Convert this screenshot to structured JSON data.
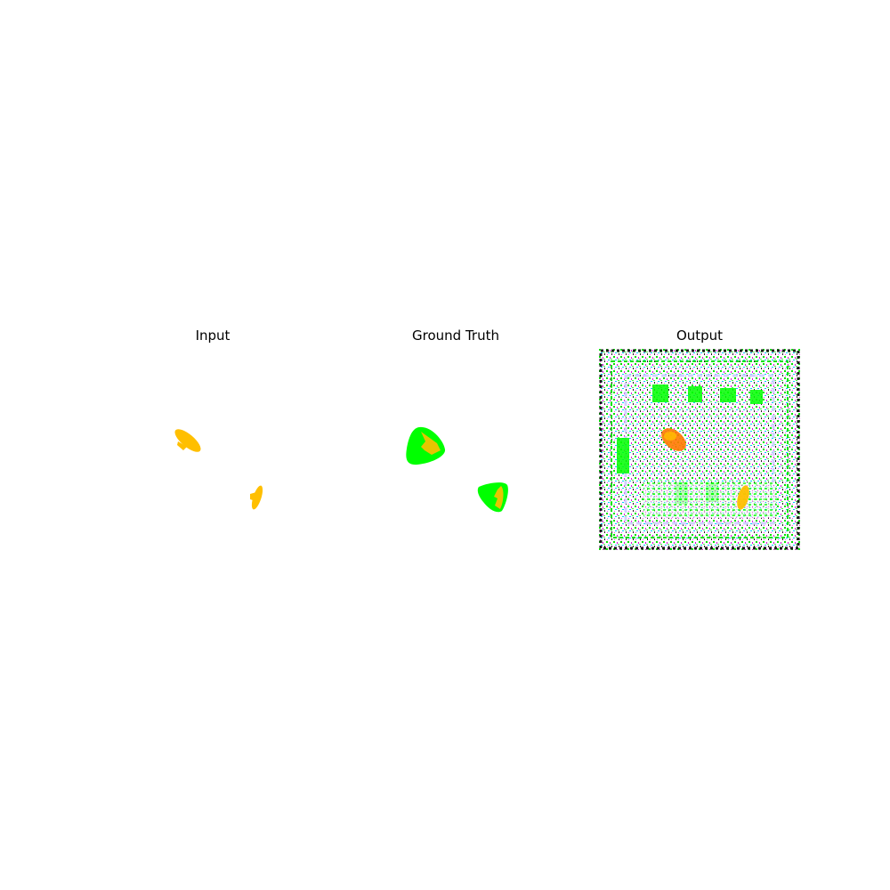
{
  "panels": [
    {
      "title": "Input"
    },
    {
      "title": "Ground Truth"
    },
    {
      "title": "Output"
    }
  ],
  "colors": {
    "region_fill": "#ffbf00",
    "gt_outline": "#00ff00",
    "output_hot": "#ff7a00",
    "background": "#ffffff"
  }
}
